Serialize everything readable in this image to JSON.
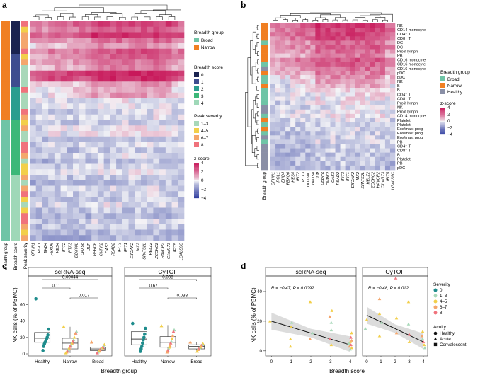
{
  "colors": {
    "breadth_broad": "#6fc4a6",
    "breadth_narrow": "#f07f22",
    "healthy": "#8a8fa6",
    "score": [
      "#1a2350",
      "#3e4d8f",
      "#2a9d8f",
      "#3cb879",
      "#9fd8b8"
    ],
    "severity": [
      "#1e8c8c",
      "#a8d8b9",
      "#f2cf4a",
      "#f4a66c",
      "#f0727c"
    ],
    "zscore_high": "#c8185a",
    "zscore_mid": "#f4f4f7",
    "zscore_low": "#2c3a9e",
    "regression_band": "#d6d6d6"
  },
  "panels": {
    "a": {
      "letter": "a",
      "genes": [
        "OPHN1",
        "RGL1",
        "EHD4",
        "FBXO6",
        "HES4",
        "IFIT2",
        "PTX3",
        "DDX60L",
        "DHX58",
        "JUP",
        "HERC6",
        "CMPK2",
        "OAS3",
        "RSAD2",
        "IFIT3",
        "IFIT1",
        "EIF2AK2",
        "MX2",
        "SPATS2L",
        "HELZ2",
        "ZCCHC2",
        "HAVCR2",
        "C1orf173",
        "IFIT5",
        "LGALS9C"
      ],
      "row_labels": [
        "Breadth group",
        "Breadth score",
        "Peak severity"
      ],
      "legends": {
        "breadth_group": {
          "title": "Breadth group",
          "items": [
            "Broad",
            "Narrow"
          ]
        },
        "breadth_score": {
          "title": "Breadth score",
          "items": [
            "0",
            "1",
            "2",
            "3",
            "4"
          ]
        },
        "peak_severity": {
          "title": "Peak severity",
          "items": [
            "1–3",
            "4–5",
            "6–7",
            "8"
          ]
        },
        "zscore": {
          "title": "z-score",
          "ticks": [
            "4",
            "2",
            "0",
            "−2",
            "−4"
          ]
        }
      }
    },
    "b": {
      "letter": "b",
      "genes": [
        "OPHN1",
        "RGL1",
        "EHD4",
        "FBXO6",
        "HES4",
        "IFIT2",
        "PTX3",
        "DDX60L",
        "DHX58",
        "JUP",
        "HERC6",
        "CMPK2",
        "OAS3",
        "RSAD2",
        "IFIT3",
        "IFIT1",
        "EIF2AK2",
        "MX2",
        "SPATS2L",
        "HELZ2",
        "ZCCHC2",
        "HAVCR2",
        "C1orf173",
        "IFIT5",
        "LGALS9C"
      ],
      "col_label": "Breadth group",
      "cell_types": [
        "NK",
        "CD14 monocyte",
        "CD4⁺ T",
        "CD8⁺ T",
        "DC",
        "DC",
        "Prolif lymph",
        "PB",
        "CD16 monocyte",
        "CD16 monocyte",
        "CD16 monocyte",
        "pDC",
        "pDC",
        "NK",
        "B",
        "B",
        "CD4⁺ T",
        "CD8⁺ T",
        "Prolif lymph",
        "NK",
        "Prolif lymph",
        "CD14 monocyte",
        "Platelet",
        "Platelet",
        "Eos/mast prog",
        "Eos/mast prog",
        "Eos/mast prog",
        "PB",
        "CD4⁺ T",
        "CD8⁺ T",
        "B",
        "Platelet",
        "PB",
        "pDC"
      ],
      "legends": {
        "breadth_group": {
          "title": "Breadth group",
          "items": [
            "Broad",
            "Narrow",
            "Healthy"
          ]
        },
        "zscore": {
          "title": "z-score",
          "ticks": [
            "4",
            "2",
            "0",
            "−2",
            "−4"
          ]
        }
      }
    },
    "c": {
      "letter": "c",
      "ylabel": "NK cells (% of PBMC)",
      "xlabel": "Breadth group",
      "categories": [
        "Healthy",
        "Narrow",
        "Broad"
      ],
      "yticks": [
        "0",
        "20",
        "40",
        "60"
      ],
      "subplots": [
        {
          "title": "scRNA-seq",
          "pvalues": {
            "healthy_broad": "0.00044",
            "healthy_narrow": "0.11",
            "narrow_broad": "0.017"
          }
        },
        {
          "title": "CyTOF",
          "pvalues": {
            "healthy_broad": "0.008",
            "healthy_narrow": "0.67",
            "narrow_broad": "0.038"
          }
        }
      ]
    },
    "d": {
      "letter": "d",
      "ylabel": "NK cells (% of PBMC)",
      "xlabel": "Breadth score",
      "xticks": [
        "0",
        "1",
        "2",
        "3",
        "4"
      ],
      "yticks": [
        "0",
        "20",
        "40"
      ],
      "subplots": [
        {
          "title": "scRNA-seq",
          "annotation": "R = −0.47, P = 0.0092"
        },
        {
          "title": "CyTOF",
          "annotation": "R = −0.48, P = 0.012"
        }
      ],
      "legends": {
        "severity": {
          "title": "Severity",
          "items": [
            "0",
            "1–3",
            "4–5",
            "6–7",
            "8"
          ]
        },
        "acuity": {
          "title": "Acuity",
          "items": [
            "Healthy",
            "Acute",
            "Convalescent"
          ]
        }
      }
    }
  },
  "chart_data": [
    {
      "type": "heatmap",
      "panel": "a",
      "columns": [
        "OPHN1",
        "RGL1",
        "EHD4",
        "FBXO6",
        "HES4",
        "IFIT2",
        "PTX3",
        "DDX60L",
        "DHX58",
        "JUP",
        "HERC6",
        "CMPK2",
        "OAS3",
        "RSAD2",
        "IFIT3",
        "IFIT1",
        "EIF2AK2",
        "MX2",
        "SPATS2L",
        "HELZ2",
        "ZCCHC2",
        "HAVCR2",
        "C1orf173",
        "IFIT5",
        "LGALS9C"
      ],
      "n_rows": 40,
      "value_range": [
        -4,
        4
      ],
      "description_rows": "samples; top rows Narrow/high z-score, lower rows Broad/low z-score",
      "row_zscore_means": [
        2.2,
        1.6,
        2.5,
        1.2,
        0.6,
        1.8,
        1.4,
        1.0,
        0.8,
        3.0,
        2.6,
        0.4,
        0.2,
        0.3,
        -0.2,
        -0.3,
        -0.5,
        -0.4,
        -0.6,
        -0.2,
        -0.1,
        -0.7,
        -0.5,
        -0.8,
        -0.4,
        -0.9,
        -0.6,
        -0.3,
        -0.7,
        -1.0,
        -0.5,
        -0.6,
        -0.8,
        -0.4,
        -0.9,
        -1.1,
        -0.6,
        -0.7,
        -1.0,
        -1.2
      ]
    },
    {
      "type": "heatmap",
      "panel": "b",
      "columns": [
        "OPHN1",
        "RGL1",
        "EHD4",
        "FBXO6",
        "HES4",
        "IFIT2",
        "PTX3",
        "DDX60L",
        "DHX58",
        "JUP",
        "HERC6",
        "CMPK2",
        "OAS3",
        "RSAD2",
        "IFIT3",
        "IFIT1",
        "EIF2AK2",
        "MX2",
        "SPATS2L",
        "HELZ2",
        "ZCCHC2",
        "HAVCR2",
        "C1orf173",
        "IFIT5",
        "LGALS9C"
      ],
      "rows": [
        "NK",
        "CD14 monocyte",
        "CD4⁺ T",
        "CD8⁺ T",
        "DC",
        "DC",
        "Prolif lymph",
        "PB",
        "CD16 monocyte",
        "CD16 monocyte",
        "CD16 monocyte",
        "pDC",
        "pDC",
        "NK",
        "B",
        "B",
        "CD4⁺ T",
        "CD8⁺ T",
        "Prolif lymph",
        "NK",
        "Prolif lymph",
        "CD14 monocyte",
        "Platelet",
        "Platelet",
        "Eos/mast prog",
        "Eos/mast prog",
        "Eos/mast prog",
        "PB",
        "CD4⁺ T",
        "CD8⁺ T",
        "B",
        "Platelet",
        "PB",
        "pDC"
      ],
      "row_groups": [
        "Narrow",
        "Narrow",
        "Narrow",
        "Narrow",
        "Broad",
        "Narrow",
        "Narrow",
        "Narrow",
        "Narrow",
        "Broad",
        "Healthy",
        "Narrow",
        "Broad",
        "Broad",
        "Narrow",
        "Broad",
        "Broad",
        "Broad",
        "Broad",
        "Healthy",
        "Healthy",
        "Broad",
        "Narrow",
        "Broad",
        "Narrow",
        "Broad",
        "Healthy",
        "Broad",
        "Healthy",
        "Healthy",
        "Healthy",
        "Healthy",
        "Healthy",
        "Healthy"
      ],
      "value_range": [
        -4,
        4
      ],
      "row_zscore_means": [
        2.4,
        2.0,
        2.2,
        2.0,
        1.4,
        1.6,
        1.2,
        1.0,
        1.8,
        1.5,
        1.2,
        0.9,
        0.6,
        0.2,
        0.1,
        0.0,
        -0.1,
        -0.2,
        -0.3,
        -0.4,
        -0.3,
        -0.2,
        -0.5,
        -0.6,
        -0.6,
        -0.7,
        -0.7,
        -0.6,
        -0.8,
        -0.8,
        -0.9,
        -0.8,
        -0.9,
        -1.0
      ]
    },
    {
      "type": "box",
      "panel": "c",
      "title": "scRNA-seq",
      "categories": [
        "Healthy",
        "Narrow",
        "Broad"
      ],
      "ylabel": "NK cells (% of PBMC)",
      "ylim": [
        0,
        75
      ],
      "boxes": [
        {
          "median": 19,
          "q1": 14,
          "q3": 26,
          "whisker_low": 4,
          "whisker_high": 30
        },
        {
          "median": 13,
          "q1": 6,
          "q3": 19,
          "whisker_low": 1,
          "whisker_high": 33
        },
        {
          "median": 6,
          "q1": 4,
          "q3": 8,
          "whisker_low": 1,
          "whisker_high": 14
        }
      ],
      "points": [
        {
          "group": "Healthy",
          "y": [
            67,
            30,
            23,
            20,
            18,
            16,
            14,
            12,
            9,
            4
          ],
          "severity": "0"
        },
        {
          "group": "Narrow",
          "y": [
            33,
            27,
            25,
            24,
            20,
            17,
            15,
            13,
            12,
            10,
            9,
            7,
            6,
            4,
            3,
            2,
            1
          ]
        },
        {
          "group": "Broad",
          "y": [
            14,
            11,
            9,
            8,
            7,
            6,
            6,
            5,
            4,
            3,
            2,
            1
          ]
        }
      ],
      "comparisons": [
        {
          "pair": [
            "Healthy",
            "Broad"
          ],
          "p": "0.00044"
        },
        {
          "pair": [
            "Healthy",
            "Narrow"
          ],
          "p": "0.11"
        },
        {
          "pair": [
            "Narrow",
            "Broad"
          ],
          "p": "0.017"
        }
      ]
    },
    {
      "type": "box",
      "panel": "c",
      "title": "CyTOF",
      "categories": [
        "Healthy",
        "Narrow",
        "Broad"
      ],
      "ylabel": "NK cells (% of PBMC)",
      "ylim": [
        0,
        75
      ],
      "boxes": [
        {
          "median": 18,
          "q1": 11,
          "q3": 27,
          "whisker_low": 3,
          "whisker_high": 37
        },
        {
          "median": 14,
          "q1": 8,
          "q3": 21,
          "whisker_low": 2,
          "whisker_high": 35
        },
        {
          "median": 9,
          "q1": 6,
          "q3": 11,
          "whisker_low": 3,
          "whisker_high": 14
        }
      ],
      "points": [
        {
          "group": "Healthy",
          "y": [
            37,
            31,
            24,
            20,
            17,
            13,
            9,
            6,
            3
          ],
          "severity": "0"
        },
        {
          "group": "Narrow",
          "y": [
            34,
            29,
            27,
            22,
            18,
            15,
            13,
            10,
            8,
            6,
            4,
            2
          ]
        },
        {
          "group": "Broad",
          "y": [
            14,
            12,
            11,
            10,
            9,
            8,
            7,
            6,
            5,
            3
          ]
        }
      ],
      "comparisons": [
        {
          "pair": [
            "Healthy",
            "Broad"
          ],
          "p": "0.008"
        },
        {
          "pair": [
            "Healthy",
            "Narrow"
          ],
          "p": "0.67"
        },
        {
          "pair": [
            "Narrow",
            "Broad"
          ],
          "p": "0.038"
        }
      ]
    },
    {
      "type": "scatter",
      "panel": "d",
      "title": "scRNA-seq",
      "xlabel": "Breadth score",
      "ylabel": "NK cells (% of PBMC)",
      "xlim": [
        -0.3,
        4.3
      ],
      "ylim": [
        -2,
        50
      ],
      "annotation": "R = −0.47, P = 0.0092",
      "fit": {
        "x": [
          0,
          4
        ],
        "y": [
          20,
          4
        ]
      },
      "points": [
        {
          "x": 0,
          "y": 20,
          "severity": "4–5",
          "acuity": "Acute"
        },
        {
          "x": 1,
          "y": 19,
          "severity": "1–3",
          "acuity": "Acute"
        },
        {
          "x": 1,
          "y": 16,
          "severity": "4–5",
          "acuity": "Acute"
        },
        {
          "x": 1,
          "y": 8,
          "severity": "4–5",
          "acuity": "Acute"
        },
        {
          "x": 1,
          "y": 3,
          "severity": "4–5",
          "acuity": "Acute"
        },
        {
          "x": 2,
          "y": 33,
          "severity": "4–5",
          "acuity": "Acute"
        },
        {
          "x": 2,
          "y": 12,
          "severity": "1–3",
          "acuity": "Acute"
        },
        {
          "x": 2,
          "y": 8,
          "severity": "6–7",
          "acuity": "Acute"
        },
        {
          "x": 3,
          "y": 27,
          "severity": "4–5",
          "acuity": "Acute"
        },
        {
          "x": 3,
          "y": 23,
          "severity": "6–7",
          "acuity": "Acute"
        },
        {
          "x": 3,
          "y": 19,
          "severity": "1–3",
          "acuity": "Acute"
        },
        {
          "x": 3,
          "y": 14,
          "severity": "1–3",
          "acuity": "Acute"
        },
        {
          "x": 3,
          "y": 8,
          "severity": "8",
          "acuity": "Acute"
        },
        {
          "x": 3,
          "y": 4,
          "severity": "4–5",
          "acuity": "Acute"
        },
        {
          "x": 4,
          "y": 12,
          "severity": "4–5",
          "acuity": "Acute"
        },
        {
          "x": 4,
          "y": 9,
          "severity": "8",
          "acuity": "Acute"
        },
        {
          "x": 4,
          "y": 7,
          "severity": "6–7",
          "acuity": "Acute"
        },
        {
          "x": 4,
          "y": 6,
          "severity": "4–5",
          "acuity": "Acute"
        },
        {
          "x": 4,
          "y": 5,
          "severity": "1–3",
          "acuity": "Acute"
        },
        {
          "x": 4,
          "y": 4,
          "severity": "8",
          "acuity": "Acute"
        },
        {
          "x": 4,
          "y": 3,
          "severity": "6–7",
          "acuity": "Acute"
        },
        {
          "x": 4,
          "y": 2,
          "severity": "4–5",
          "acuity": "Acute"
        },
        {
          "x": 4,
          "y": 1,
          "severity": "1–3",
          "acuity": "Acute"
        }
      ]
    },
    {
      "type": "scatter",
      "panel": "d",
      "title": "CyTOF",
      "xlabel": "Breadth score",
      "ylabel": "NK cells (% of PBMC)",
      "xlim": [
        -0.3,
        4.3
      ],
      "ylim": [
        -2,
        50
      ],
      "annotation": "R = −0.48, P = 0.012",
      "fit": {
        "x": [
          0,
          4
        ],
        "y": [
          24,
          6
        ]
      },
      "points": [
        {
          "x": 0,
          "y": 21,
          "severity": "4–5",
          "acuity": "Acute"
        },
        {
          "x": 0,
          "y": 15,
          "severity": "1–3",
          "acuity": "Acute"
        },
        {
          "x": 1,
          "y": 35,
          "severity": "6–7",
          "acuity": "Acute"
        },
        {
          "x": 1,
          "y": 25,
          "severity": "4–5",
          "acuity": "Acute"
        },
        {
          "x": 1,
          "y": 19,
          "severity": "1–3",
          "acuity": "Acute"
        },
        {
          "x": 1,
          "y": 10,
          "severity": "4–5",
          "acuity": "Acute"
        },
        {
          "x": 2,
          "y": 49,
          "severity": "8",
          "acuity": "Acute"
        },
        {
          "x": 2,
          "y": 22,
          "severity": "4–5",
          "acuity": "Acute"
        },
        {
          "x": 2,
          "y": 12,
          "severity": "6–7",
          "acuity": "Acute"
        },
        {
          "x": 3,
          "y": 33,
          "severity": "4–5",
          "acuity": "Acute"
        },
        {
          "x": 3,
          "y": 18,
          "severity": "1–3",
          "acuity": "Acute"
        },
        {
          "x": 3,
          "y": 11,
          "severity": "8",
          "acuity": "Acute"
        },
        {
          "x": 3,
          "y": 6,
          "severity": "4–5",
          "acuity": "Acute"
        },
        {
          "x": 4,
          "y": 13,
          "severity": "4–5",
          "acuity": "Acute"
        },
        {
          "x": 4,
          "y": 10,
          "severity": "6–7",
          "acuity": "Acute"
        },
        {
          "x": 4,
          "y": 8,
          "severity": "1–3",
          "acuity": "Acute"
        },
        {
          "x": 4,
          "y": 6,
          "severity": "8",
          "acuity": "Acute"
        },
        {
          "x": 4,
          "y": 4,
          "severity": "4–5",
          "acuity": "Acute"
        },
        {
          "x": 4,
          "y": 2,
          "severity": "1–3",
          "acuity": "Acute"
        }
      ]
    }
  ]
}
